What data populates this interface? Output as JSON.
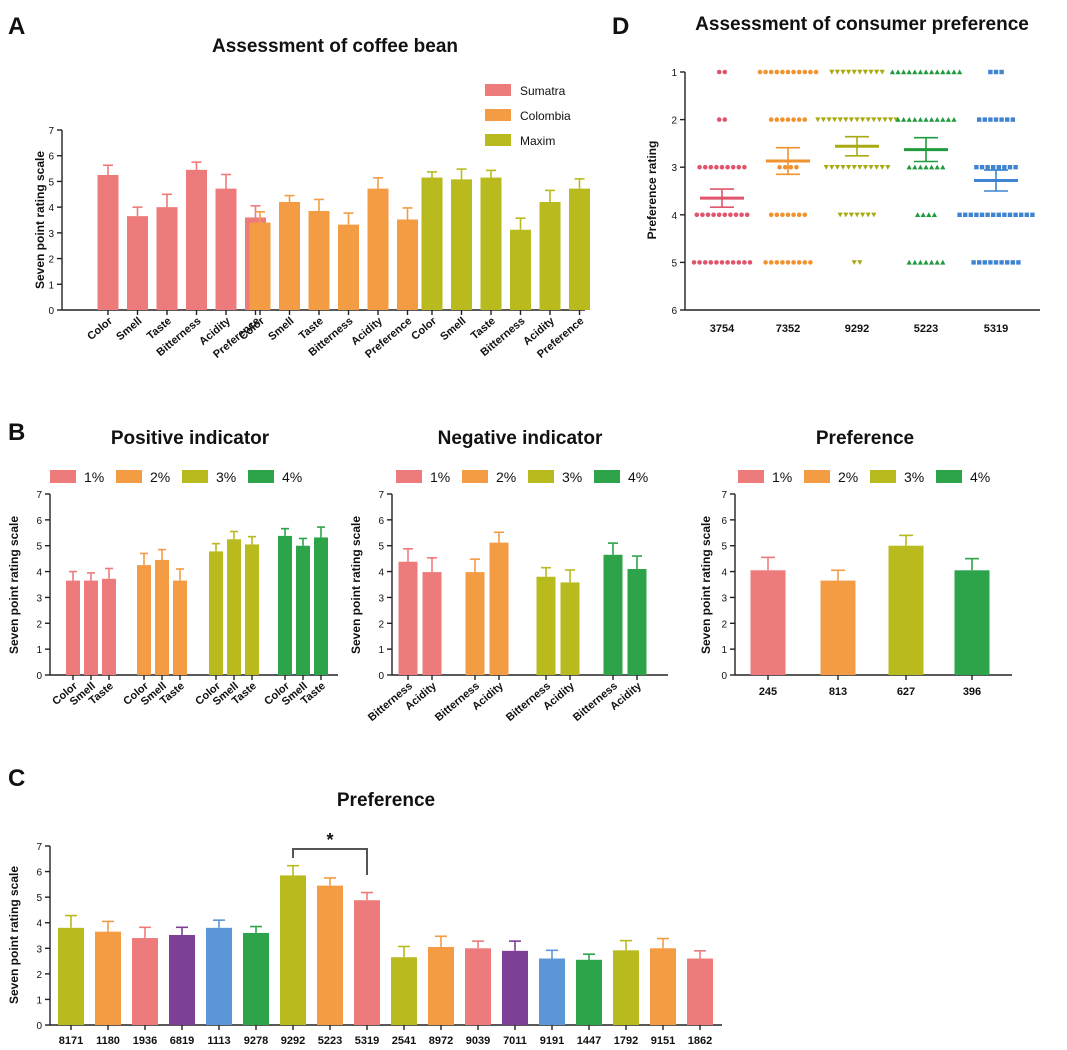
{
  "colors": {
    "pink": "#EE7B7B",
    "orange": "#F39C44",
    "olive": "#B8BA1E",
    "green": "#2EA44A",
    "purple": "#7E3F96",
    "blue": "#5B97D6"
  },
  "panels": {
    "A": "A",
    "B": "B",
    "C": "C",
    "D": "D"
  },
  "chart_data": [
    {
      "id": "A",
      "type": "bar",
      "title": "Assessment of coffee bean",
      "ylabel": "Seven point rating scale",
      "ylim": [
        0,
        7
      ],
      "yticks": [
        0,
        1,
        2,
        3,
        4,
        5,
        6,
        7
      ],
      "categories": [
        "Color",
        "Smell",
        "Taste",
        "Bitterness",
        "Acidity",
        "Preference"
      ],
      "legend_position": "top-right",
      "series": [
        {
          "name": "Sumatra",
          "color": "#EE7B7B",
          "values": [
            5.25,
            3.65,
            4.0,
            5.45,
            4.72,
            3.6
          ],
          "errors": [
            0.38,
            0.35,
            0.5,
            0.3,
            0.55,
            0.45
          ]
        },
        {
          "name": "Colombia",
          "color": "#F39C44",
          "values": [
            3.4,
            4.2,
            3.85,
            3.32,
            4.72,
            3.52
          ],
          "errors": [
            0.42,
            0.25,
            0.45,
            0.45,
            0.42,
            0.45
          ]
        },
        {
          "name": "Maxim",
          "color": "#B8BA1E",
          "values": [
            5.15,
            5.08,
            5.15,
            3.12,
            4.2,
            4.72
          ],
          "errors": [
            0.22,
            0.4,
            0.28,
            0.45,
            0.45,
            0.38
          ]
        }
      ]
    },
    {
      "id": "B1",
      "type": "bar",
      "title": "Positive indicator",
      "ylabel": "Seven point rating scale",
      "ylim": [
        0,
        7
      ],
      "yticks": [
        0,
        1,
        2,
        3,
        4,
        5,
        6,
        7
      ],
      "categories": [
        "Color",
        "Smell",
        "Taste"
      ],
      "legend_position": "top",
      "series": [
        {
          "name": "1%",
          "color": "#EE7B7B",
          "values": [
            3.65,
            3.65,
            3.72
          ],
          "errors": [
            0.35,
            0.3,
            0.4
          ]
        },
        {
          "name": "2%",
          "color": "#F39C44",
          "values": [
            4.25,
            4.45,
            3.65
          ],
          "errors": [
            0.45,
            0.4,
            0.45
          ]
        },
        {
          "name": "3%",
          "color": "#B8BA1E",
          "values": [
            4.78,
            5.25,
            5.05
          ],
          "errors": [
            0.3,
            0.3,
            0.3
          ]
        },
        {
          "name": "4%",
          "color": "#2EA44A",
          "values": [
            5.38,
            5.0,
            5.32
          ],
          "errors": [
            0.28,
            0.28,
            0.4
          ]
        }
      ]
    },
    {
      "id": "B2",
      "type": "bar",
      "title": "Negative indicator",
      "ylabel": "Seven point rating scale",
      "ylim": [
        0,
        7
      ],
      "yticks": [
        0,
        1,
        2,
        3,
        4,
        5,
        6,
        7
      ],
      "categories": [
        "Bitterness",
        "Acidity"
      ],
      "legend_position": "top",
      "series": [
        {
          "name": "1%",
          "color": "#EE7B7B",
          "values": [
            4.38,
            3.98
          ],
          "errors": [
            0.5,
            0.55
          ]
        },
        {
          "name": "2%",
          "color": "#F39C44",
          "values": [
            3.98,
            5.12
          ],
          "errors": [
            0.5,
            0.4
          ]
        },
        {
          "name": "3%",
          "color": "#B8BA1E",
          "values": [
            3.8,
            3.58
          ],
          "errors": [
            0.35,
            0.48
          ]
        },
        {
          "name": "4%",
          "color": "#2EA44A",
          "values": [
            4.65,
            4.1
          ],
          "errors": [
            0.45,
            0.5
          ]
        }
      ]
    },
    {
      "id": "B3",
      "type": "bar",
      "title": "Preference",
      "ylabel": "Seven point rating scale",
      "ylim": [
        0,
        7
      ],
      "yticks": [
        0,
        1,
        2,
        3,
        4,
        5,
        6,
        7
      ],
      "categories": [
        "245",
        "813",
        "627",
        "396"
      ],
      "legend_position": "top",
      "legend": [
        {
          "name": "1%",
          "color": "#EE7B7B"
        },
        {
          "name": "2%",
          "color": "#F39C44"
        },
        {
          "name": "3%",
          "color": "#B8BA1E"
        },
        {
          "name": "4%",
          "color": "#2EA44A"
        }
      ],
      "values": [
        4.05,
        3.65,
        5.0,
        4.05
      ],
      "errors": [
        0.5,
        0.4,
        0.4,
        0.45
      ],
      "bar_colors": [
        "#EE7B7B",
        "#F39C44",
        "#B8BA1E",
        "#2EA44A"
      ]
    },
    {
      "id": "C",
      "type": "bar",
      "title": "Preference",
      "ylabel": "Seven point rating scale",
      "ylim": [
        0,
        7
      ],
      "yticks": [
        0,
        1,
        2,
        3,
        4,
        5,
        6,
        7
      ],
      "categories": [
        "8171",
        "1180",
        "1936",
        "6819",
        "1113",
        "9278",
        "9292",
        "5223",
        "5319",
        "2541",
        "8972",
        "9039",
        "7011",
        "9191",
        "1447",
        "1792",
        "9151",
        "1862"
      ],
      "values": [
        3.8,
        3.65,
        3.4,
        3.52,
        3.8,
        3.6,
        5.85,
        5.45,
        4.88,
        2.65,
        3.05,
        3.0,
        2.9,
        2.6,
        2.55,
        2.92,
        3.0,
        2.6
      ],
      "errors": [
        0.48,
        0.4,
        0.42,
        0.3,
        0.3,
        0.25,
        0.38,
        0.3,
        0.3,
        0.42,
        0.42,
        0.28,
        0.38,
        0.32,
        0.22,
        0.38,
        0.38,
        0.3
      ],
      "bar_colors": [
        "#B8BA1E",
        "#F39C44",
        "#EE7B7B",
        "#7E3F96",
        "#5B97D6",
        "#2EA44A",
        "#B8BA1E",
        "#F39C44",
        "#EE7B7B",
        "#B8BA1E",
        "#F39C44",
        "#EE7B7B",
        "#7E3F96",
        "#5B97D6",
        "#2EA44A",
        "#B8BA1E",
        "#F39C44",
        "#EE7B7B"
      ],
      "significance": {
        "from": "9292",
        "to": "5319",
        "label": "*"
      }
    },
    {
      "id": "D",
      "type": "scatter",
      "title": "Assessment of consumer preference",
      "ylabel": "Preference rating",
      "ylim": [
        1,
        6
      ],
      "y_inverted": true,
      "yticks": [
        1,
        2,
        3,
        4,
        5,
        6
      ],
      "categories": [
        "3754",
        "7352",
        "9292",
        "5223",
        "5319"
      ],
      "series": [
        {
          "name": "3754",
          "color": "#E0546C",
          "marker": "circle",
          "counts": {
            "1": 2,
            "2": 2,
            "3": 9,
            "4": 10,
            "5": 11
          },
          "mean": 3.65,
          "sem": 0.19
        },
        {
          "name": "7352",
          "color": "#F0922E",
          "marker": "circle",
          "counts": {
            "1": 11,
            "2": 7,
            "3": 4,
            "4": 7,
            "5": 9
          },
          "mean": 2.87,
          "sem": 0.28
        },
        {
          "name": "9292",
          "color": "#A8AA12",
          "marker": "triangle-down",
          "counts": {
            "1": 10,
            "2": 15,
            "3": 12,
            "4": 7,
            "5": 2
          },
          "mean": 2.56,
          "sem": 0.2
        },
        {
          "name": "5223",
          "color": "#1F9A3C",
          "marker": "triangle-up",
          "counts": {
            "1": 13,
            "2": 11,
            "3": 7,
            "4": 4,
            "5": 7
          },
          "mean": 2.63,
          "sem": 0.25
        },
        {
          "name": "5319",
          "color": "#3F84D0",
          "marker": "square",
          "counts": {
            "1": 3,
            "2": 7,
            "3": 8,
            "4": 14,
            "5": 9
          },
          "mean": 3.28,
          "sem": 0.22
        }
      ]
    }
  ]
}
